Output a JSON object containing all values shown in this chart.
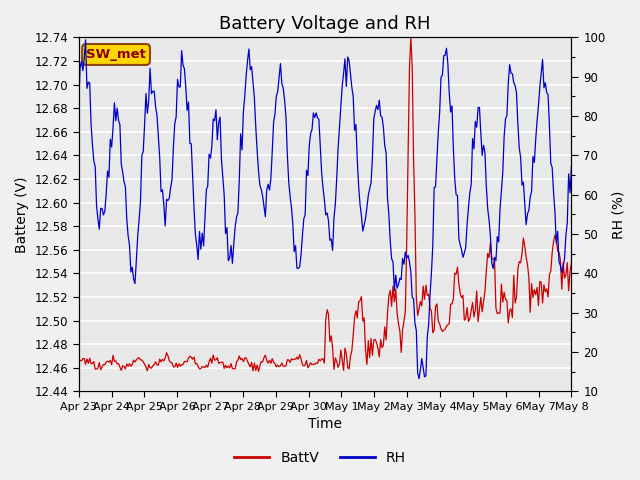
{
  "title": "Battery Voltage and RH",
  "xlabel": "Time",
  "ylabel_left": "Battery (V)",
  "ylabel_right": "RH (%)",
  "ylim_left": [
    12.44,
    12.74
  ],
  "ylim_right": [
    10,
    100
  ],
  "yticks_left": [
    12.44,
    12.46,
    12.48,
    12.5,
    12.52,
    12.54,
    12.56,
    12.58,
    12.6,
    12.62,
    12.64,
    12.66,
    12.68,
    12.7,
    12.72,
    12.74
  ],
  "yticks_right": [
    10,
    20,
    30,
    40,
    50,
    60,
    70,
    80,
    90,
    100
  ],
  "xtick_labels": [
    "Apr 23",
    "Apr 24",
    "Apr 25",
    "Apr 26",
    "Apr 27",
    "Apr 28",
    "Apr 29",
    "Apr 30",
    "May 1",
    "May 2",
    "May 3",
    "May 4",
    "May 5",
    "May 6",
    "May 7",
    "May 8"
  ],
  "station_label": "SW_met",
  "station_box_facecolor": "#FFD700",
  "station_box_edgecolor": "#8B4513",
  "station_text_color": "#8B0000",
  "line_battv_color": "#CC0000",
  "line_rh_color": "#0000CC",
  "plot_bg_color": "#E8E8E8",
  "fig_bg_color": "#F0F0F0",
  "grid_color": "#FFFFFF",
  "title_fontsize": 13,
  "axis_label_fontsize": 10,
  "tick_fontsize": 8.5,
  "legend_fontsize": 10,
  "n_days": 15,
  "rh_seed": 123,
  "battv_seed": 77
}
